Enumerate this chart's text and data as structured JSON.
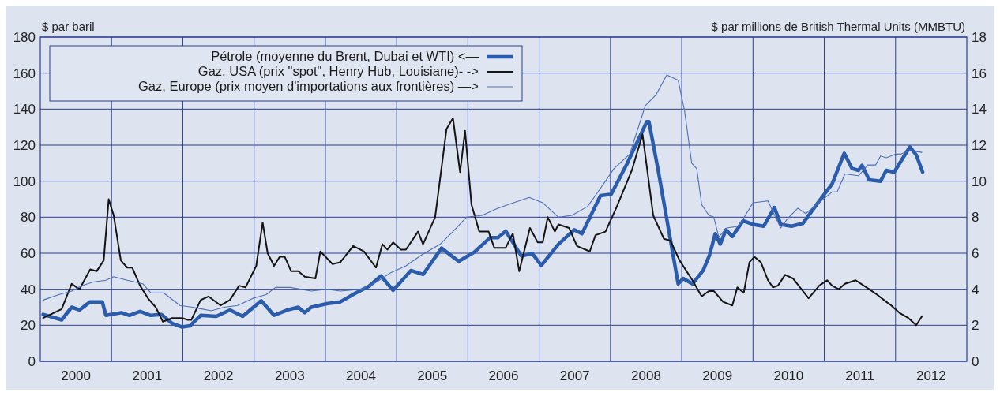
{
  "chart_data": {
    "type": "line",
    "ylabel": "$ par baril",
    "y2label": "$ par millions de British Thermal Units (MMBTU)",
    "xlim": [
      2000,
      2013
    ],
    "xticks": [
      {
        "value": 2000.5,
        "label": "2000"
      },
      {
        "value": 2001.5,
        "label": "2001"
      },
      {
        "value": 2002.5,
        "label": "2002"
      },
      {
        "value": 2003.5,
        "label": "2003"
      },
      {
        "value": 2004.5,
        "label": "2004"
      },
      {
        "value": 2005.5,
        "label": "2005"
      },
      {
        "value": 2006.5,
        "label": "2006"
      },
      {
        "value": 2007.5,
        "label": "2007"
      },
      {
        "value": 2008.5,
        "label": "2008"
      },
      {
        "value": 2009.5,
        "label": "2009"
      },
      {
        "value": 2010.5,
        "label": "2010"
      },
      {
        "value": 2011.5,
        "label": "2011"
      },
      {
        "value": 2012.5,
        "label": "2012"
      },
      {
        "value": 2001,
        "label": null
      },
      {
        "value": 2002,
        "label": null
      },
      {
        "value": 2003,
        "label": null
      },
      {
        "value": 2004,
        "label": null
      },
      {
        "value": 2005,
        "label": null
      },
      {
        "value": 2006,
        "label": null
      },
      {
        "value": 2007,
        "label": null
      },
      {
        "value": 2008,
        "label": null
      },
      {
        "value": 2009,
        "label": null
      },
      {
        "value": 2010,
        "label": null
      },
      {
        "value": 2011,
        "label": null
      },
      {
        "value": 2012,
        "label": null
      }
    ],
    "ylim": [
      0,
      180
    ],
    "yticks": [
      0,
      20,
      40,
      60,
      80,
      100,
      120,
      140,
      160,
      180
    ],
    "y2lim": [
      0,
      18
    ],
    "y2ticks": [
      0,
      2,
      4,
      6,
      8,
      10,
      12,
      14,
      16,
      18
    ],
    "grid": true,
    "legend": "top left",
    "series": [
      {
        "name": "Pétrole (moyenne du Brent, Dubai et WTI) <—",
        "color": "#2b5cab",
        "x": [
          2000.04,
          2000.3,
          2000.44,
          2000.55,
          2000.7,
          2000.87,
          2000.92,
          2001.14,
          2001.25,
          2001.4,
          2001.55,
          2001.7,
          2001.85,
          2001.99,
          2002.1,
          2002.25,
          2002.47,
          2002.66,
          2002.84,
          2003.1,
          2003.28,
          2003.47,
          2003.62,
          2003.71,
          2003.8,
          2004.02,
          2004.21,
          2004.43,
          2004.61,
          2004.78,
          2004.95,
          2005.2,
          2005.37,
          2005.63,
          2005.87,
          2006.09,
          2006.31,
          2006.42,
          2006.53,
          2006.75,
          2006.9,
          2007.03,
          2007.27,
          2007.49,
          2007.6,
          2007.86,
          2008.01,
          2008.23,
          2008.51,
          2008.54,
          2008.67,
          2008.95,
          2009.02,
          2009.15,
          2009.3,
          2009.39,
          2009.47,
          2009.54,
          2009.62,
          2009.71,
          2009.86,
          2010,
          2010.15,
          2010.3,
          2010.39,
          2010.54,
          2010.7,
          2010.89,
          2011.11,
          2011.28,
          2011.39,
          2011.48,
          2011.53,
          2011.63,
          2011.79,
          2011.87,
          2011.98,
          2012.2,
          2012.29,
          2012.38
        ],
        "values": [
          26,
          23,
          30,
          28.5,
          33,
          33,
          25.5,
          27,
          25.5,
          27.7,
          25.5,
          26,
          21,
          19,
          19.7,
          25.5,
          25,
          28.5,
          25,
          33.6,
          25.5,
          28.5,
          30,
          27,
          30,
          32,
          33,
          38,
          41.6,
          47.4,
          39.4,
          50.4,
          48.2,
          62.8,
          55.5,
          60.6,
          68.6,
          68.6,
          72.3,
          58.4,
          59.9,
          53.3,
          65,
          73,
          70.8,
          92,
          92.7,
          109.5,
          133,
          133,
          106,
          43,
          46,
          43,
          50.4,
          59,
          70.8,
          65,
          73,
          69.3,
          78,
          76,
          75,
          85.4,
          76,
          75,
          76.6,
          86.9,
          98.5,
          115.5,
          107,
          106,
          108.8,
          100.7,
          100,
          106,
          105,
          119,
          114.6,
          105
        ]
      },
      {
        "name": "Gaz, USA (prix \"spot\", Henry Hub, Louisiane)- ->",
        "color": "#141414",
        "axis": "y2",
        "x": [
          2000.04,
          2000.3,
          2000.44,
          2000.55,
          2000.7,
          2000.79,
          2000.89,
          2000.96,
          2001.03,
          2001.13,
          2001.22,
          2001.29,
          2001.4,
          2001.51,
          2001.62,
          2001.72,
          2001.85,
          2001.99,
          2002.07,
          2002.12,
          2002.25,
          2002.36,
          2002.53,
          2002.66,
          2002.79,
          2002.88,
          2003.03,
          2003.12,
          2003.19,
          2003.28,
          2003.36,
          2003.43,
          2003.52,
          2003.62,
          2003.71,
          2003.86,
          2003.93,
          2004.1,
          2004.21,
          2004.39,
          2004.54,
          2004.71,
          2004.8,
          2004.87,
          2004.95,
          2005.06,
          2005.13,
          2005.3,
          2005.37,
          2005.54,
          2005.7,
          2005.79,
          2005.89,
          2005.96,
          2006.05,
          2006.16,
          2006.29,
          2006.37,
          2006.53,
          2006.63,
          2006.72,
          2006.87,
          2006.98,
          2007.05,
          2007.12,
          2007.22,
          2007.27,
          2007.42,
          2007.53,
          2007.71,
          2007.79,
          2007.93,
          2008.08,
          2008.3,
          2008.45,
          2008.6,
          2008.75,
          2008.84,
          2008.97,
          2009.15,
          2009.28,
          2009.38,
          2009.45,
          2009.58,
          2009.71,
          2009.78,
          2009.87,
          2009.95,
          2010.02,
          2010.11,
          2010.21,
          2010.28,
          2010.35,
          2010.45,
          2010.56,
          2010.78,
          2010.93,
          2011.04,
          2011.11,
          2011.2,
          2011.29,
          2011.44,
          2011.63,
          2011.74,
          2011.87,
          2011.94,
          2012.05,
          2012.18,
          2012.29,
          2012.37
        ],
        "values": [
          2.4,
          2.9,
          4.3,
          4,
          5.1,
          5,
          5.6,
          9,
          8.1,
          5.6,
          5.2,
          5.2,
          4.2,
          3.5,
          3,
          2.2,
          2.4,
          2.4,
          2.3,
          2.3,
          3.4,
          3.6,
          3.1,
          3.4,
          4.2,
          4.1,
          5.3,
          7.7,
          6,
          5.3,
          5.8,
          5.8,
          5,
          5,
          4.7,
          4.6,
          6.1,
          5.4,
          5.5,
          6.4,
          6.1,
          5.2,
          6.5,
          6.2,
          6.6,
          6.2,
          6.2,
          7.2,
          6.5,
          8,
          12.9,
          13.5,
          10.5,
          12.8,
          8.7,
          7.2,
          7.2,
          6.3,
          6.3,
          7.1,
          5,
          7.4,
          6.6,
          6.6,
          8,
          7.2,
          7.6,
          7.4,
          6.4,
          6.1,
          7,
          7.2,
          8.5,
          10.6,
          12.6,
          8.1,
          6.8,
          6.7,
          5.6,
          4.5,
          3.6,
          3.9,
          3.9,
          3.3,
          3.1,
          4.1,
          3.8,
          5.5,
          5.8,
          5.5,
          4.5,
          4.1,
          4.2,
          4.8,
          4.6,
          3.5,
          4.2,
          4.5,
          4.2,
          4,
          4.3,
          4.5,
          4,
          3.7,
          3.3,
          3.1,
          2.7,
          2.4,
          2,
          2.5
        ]
      },
      {
        "name": "Gaz, Europe (prix moyen d'importations aux frontières) —>",
        "color": "#4d6fb8",
        "axis": "y2",
        "x": [
          2000.04,
          2000.26,
          2000.44,
          2000.59,
          2000.74,
          2000.92,
          2001.03,
          2001.22,
          2001.44,
          2001.55,
          2001.73,
          2001.96,
          2002.14,
          2002.4,
          2002.58,
          2002.77,
          2002.99,
          2003.17,
          2003.3,
          2003.51,
          2003.8,
          2004.02,
          2004.21,
          2004.5,
          2004.72,
          2004.91,
          2005.13,
          2005.35,
          2005.61,
          2005.79,
          2005.98,
          2006.2,
          2006.42,
          2006.64,
          2006.86,
          2007.05,
          2007.27,
          2007.46,
          2007.68,
          2007.86,
          2008.05,
          2008.27,
          2008.49,
          2008.64,
          2008.79,
          2008.95,
          2009.04,
          2009.14,
          2009.21,
          2009.28,
          2009.38,
          2009.45,
          2009.52,
          2009.63,
          2009.8,
          2010,
          2010.21,
          2010.34,
          2010.39,
          2010.48,
          2010.63,
          2010.74,
          2010.89,
          2011.11,
          2011.18,
          2011.29,
          2011.48,
          2011.61,
          2011.72,
          2011.79,
          2011.87,
          2012,
          2012.07,
          2012.2,
          2012.37
        ],
        "values": [
          3.4,
          3.7,
          3.9,
          4.2,
          4.4,
          4.5,
          4.7,
          4.5,
          4.3,
          3.8,
          3.8,
          3.1,
          3,
          2.8,
          3,
          3.1,
          3.5,
          3.7,
          4.1,
          4.1,
          3.9,
          4,
          3.9,
          4,
          4.4,
          4.9,
          5.3,
          5.9,
          6.5,
          7.2,
          8,
          8.1,
          8.5,
          8.8,
          9.1,
          8.8,
          8,
          8.1,
          8.6,
          9.6,
          10.7,
          11.5,
          14.2,
          14.8,
          15.9,
          15.6,
          13.9,
          11,
          10.7,
          8.7,
          8.1,
          8,
          6.9,
          7.4,
          7.5,
          8.8,
          8.9,
          7.8,
          7.4,
          7.9,
          8.5,
          8.2,
          8.7,
          9.4,
          9.4,
          10.4,
          10.3,
          10.9,
          10.9,
          11.4,
          11.3,
          11.5,
          11.5,
          11.7,
          11.6
        ]
      }
    ]
  }
}
